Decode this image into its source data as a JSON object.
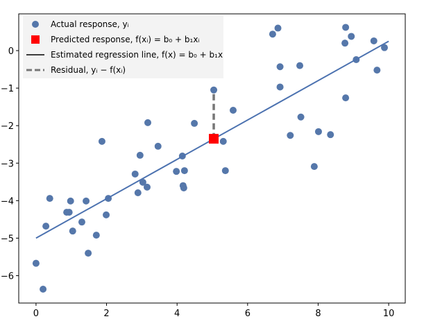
{
  "chart_data": {
    "type": "scatter",
    "title": "",
    "xlabel": "",
    "ylabel": "",
    "xlim": [
      -0.49,
      10.47
    ],
    "ylim": [
      -6.73,
      0.98
    ],
    "xticks": [
      0,
      2,
      4,
      6,
      8,
      10
    ],
    "yticks": [
      0,
      -1,
      -2,
      -3,
      -4,
      -5,
      -6
    ],
    "grid": false,
    "legend_position": "top-left",
    "colors": {
      "points": "#5577aa",
      "line": "#4c72b0",
      "predicted": "#ff0000",
      "residual": "#777777"
    },
    "legend": [
      "Actual response, yᵢ",
      "Predicted response, f(xᵢ) = b₀ + b₁xᵢ",
      "Estimated regression line, f(x) = b₀ + b₁x",
      "Residual,   yᵢ − f(xᵢ)"
    ],
    "regression_line": {
      "b0": -5.0,
      "b1": 0.525,
      "x_range": [
        0,
        10
      ]
    },
    "points": [
      [
        0.0,
        -5.67
      ],
      [
        0.2,
        -6.36
      ],
      [
        0.28,
        -4.68
      ],
      [
        0.39,
        -3.94
      ],
      [
        0.87,
        -4.31
      ],
      [
        0.94,
        -4.31
      ],
      [
        0.98,
        -4.01
      ],
      [
        1.04,
        -4.81
      ],
      [
        1.3,
        -4.57
      ],
      [
        1.42,
        -4.01
      ],
      [
        1.48,
        -5.4
      ],
      [
        1.71,
        -4.92
      ],
      [
        1.87,
        -2.42
      ],
      [
        1.99,
        -4.38
      ],
      [
        2.05,
        -3.94
      ],
      [
        2.81,
        -3.29
      ],
      [
        2.89,
        -3.79
      ],
      [
        2.95,
        -2.79
      ],
      [
        3.03,
        -3.51
      ],
      [
        3.15,
        -3.64
      ],
      [
        3.17,
        -1.92
      ],
      [
        3.46,
        -2.55
      ],
      [
        3.98,
        -3.22
      ],
      [
        4.15,
        -2.81
      ],
      [
        4.17,
        -3.6
      ],
      [
        4.19,
        -3.66
      ],
      [
        4.21,
        -3.2
      ],
      [
        4.49,
        -1.94
      ],
      [
        5.04,
        -1.05
      ],
      [
        5.31,
        -2.42
      ],
      [
        5.37,
        -3.2
      ],
      [
        5.59,
        -1.59
      ],
      [
        6.71,
        0.44
      ],
      [
        6.86,
        0.6
      ],
      [
        6.92,
        -0.43
      ],
      [
        6.92,
        -0.97
      ],
      [
        7.48,
        -0.4
      ],
      [
        7.51,
        -1.77
      ],
      [
        7.21,
        -2.26
      ],
      [
        8.01,
        -2.16
      ],
      [
        8.35,
        -2.24
      ],
      [
        7.89,
        -3.09
      ],
      [
        8.78,
        0.62
      ],
      [
        8.94,
        0.38
      ],
      [
        8.76,
        0.2
      ],
      [
        8.78,
        -1.26
      ],
      [
        9.08,
        -0.24
      ],
      [
        9.58,
        0.26
      ],
      [
        9.67,
        -0.52
      ],
      [
        9.88,
        0.08
      ]
    ],
    "predicted_point": [
      5.04,
      -2.35
    ],
    "residual": {
      "x": 5.04,
      "y_actual": -1.05,
      "y_predicted": -2.35
    }
  }
}
